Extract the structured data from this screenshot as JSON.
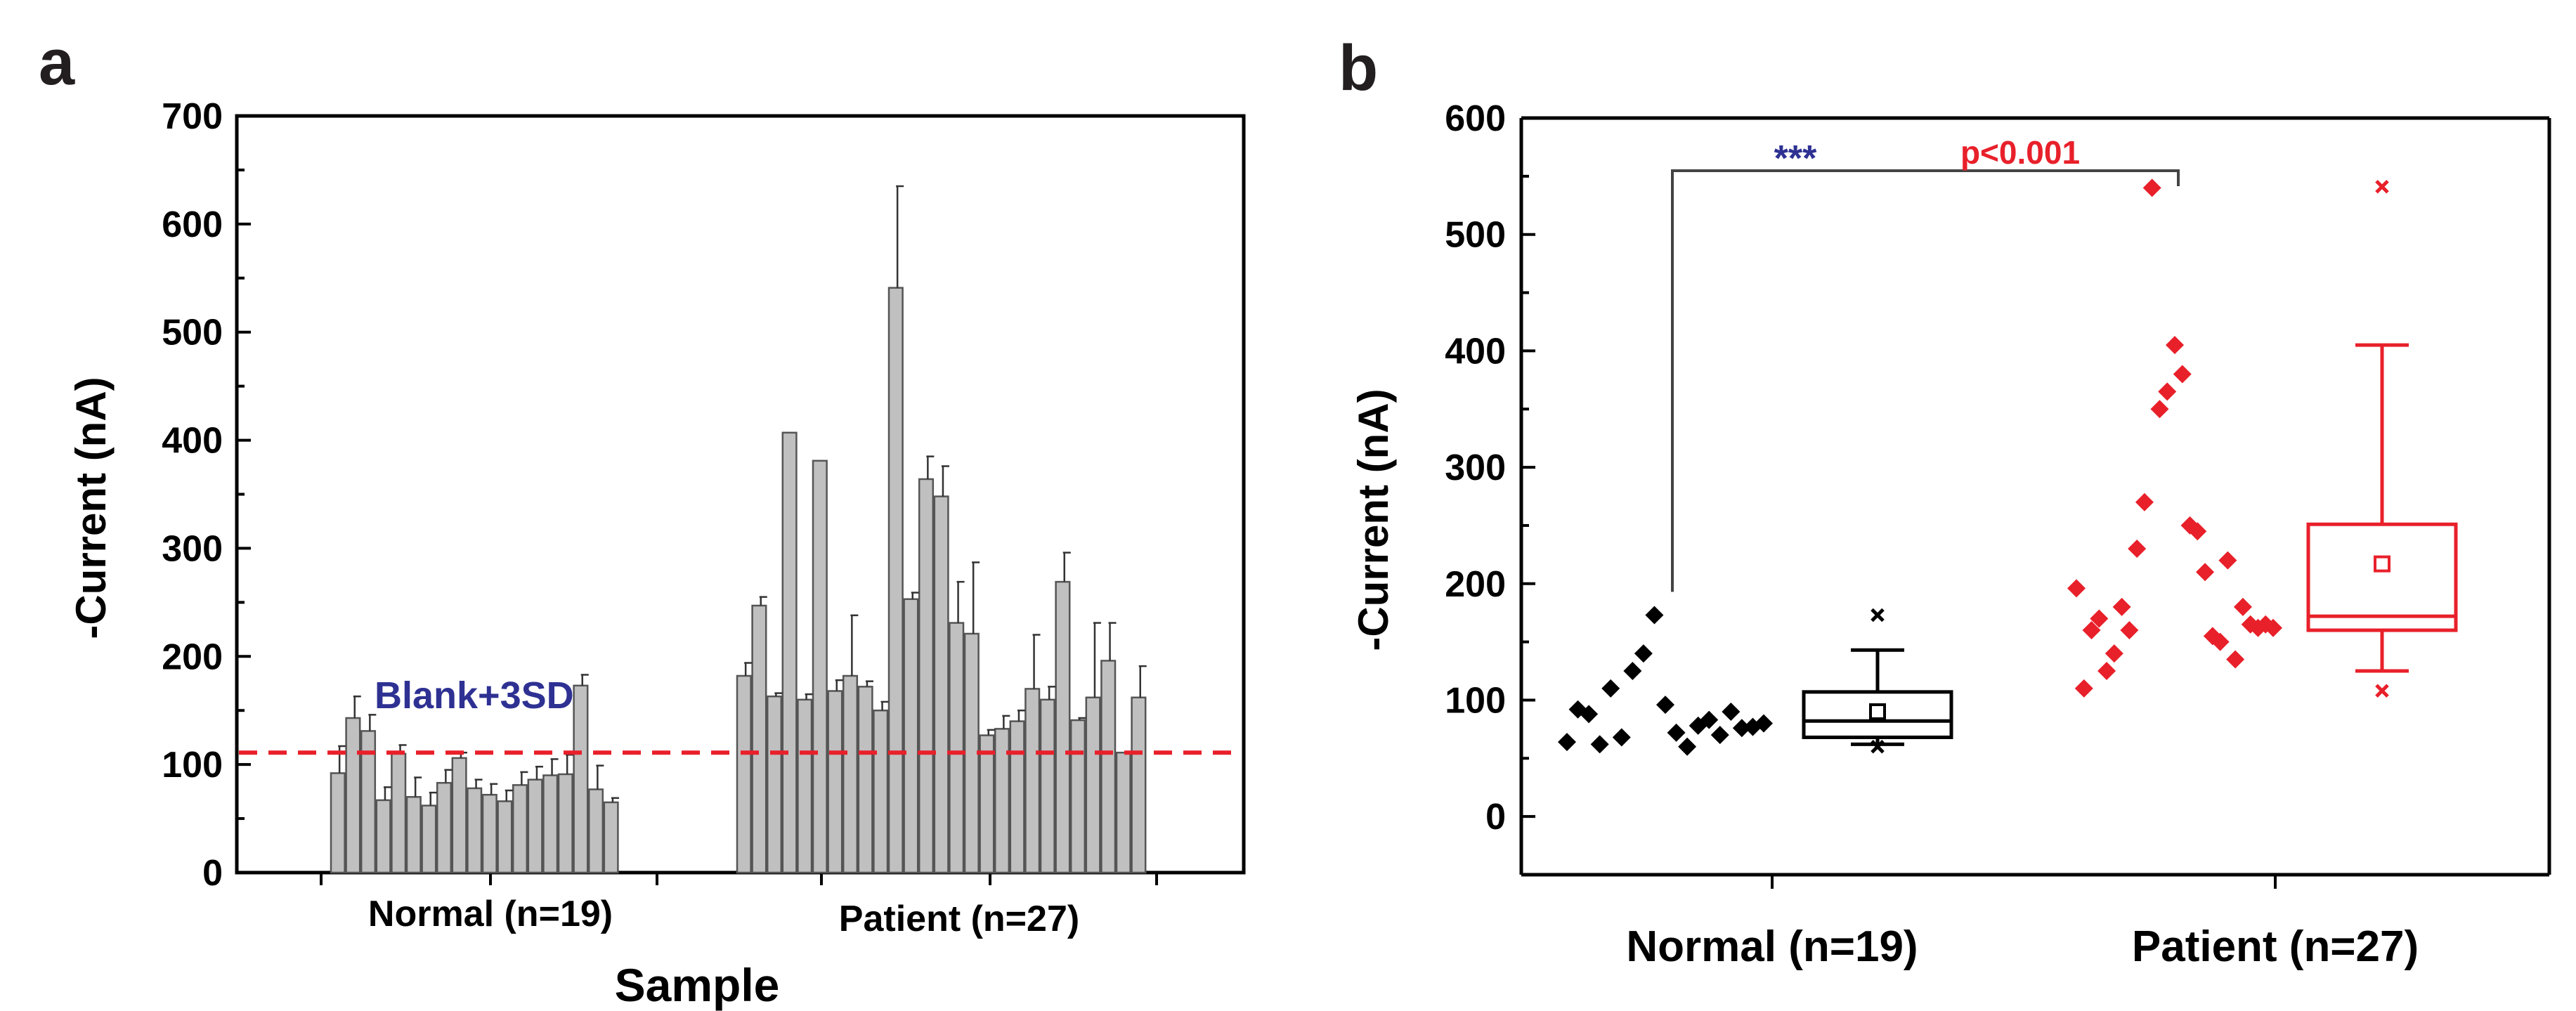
{
  "chart_data": [
    {
      "panel_label": "a",
      "type": "bar",
      "xlabel": "Sample",
      "ylabel": "-Current (nA)",
      "ylim": [
        0,
        700
      ],
      "yticks": [
        0,
        100,
        200,
        300,
        400,
        500,
        600,
        700
      ],
      "groups": [
        {
          "name": "Normal (n=19)",
          "values": [
            92,
            143,
            131,
            67,
            110,
            70,
            62,
            83,
            106,
            78,
            72,
            66,
            81,
            86,
            90,
            91,
            173,
            77,
            65
          ],
          "errors": [
            25,
            20,
            15,
            12,
            8,
            18,
            12,
            12,
            5,
            8,
            10,
            10,
            12,
            12,
            15,
            18,
            10,
            22,
            4
          ]
        },
        {
          "name": "Patient (n=27)",
          "values": [
            182,
            247,
            163,
            407,
            160,
            381,
            168,
            182,
            172,
            150,
            541,
            253,
            364,
            348,
            231,
            221,
            127,
            133,
            140,
            170,
            160,
            269,
            141,
            162,
            196,
            111,
            162
          ],
          "errors": [
            12,
            8,
            3,
            0,
            5,
            0,
            10,
            56,
            5,
            8,
            94,
            6,
            21,
            28,
            38,
            66,
            5,
            12,
            10,
            50,
            12,
            27,
            2,
            69,
            35,
            0,
            29
          ]
        }
      ],
      "reference_line": {
        "value": 111,
        "label": "Blank+3SD",
        "color": "#e8202a"
      },
      "colors": {
        "bar": "#c0c0c0",
        "label": "#2e3192"
      }
    },
    {
      "panel_label": "b",
      "type": "scatter",
      "ylabel": "-Current (nA)",
      "ylim": [
        -50,
        600
      ],
      "yticks": [
        0,
        100,
        200,
        300,
        400,
        500,
        600
      ],
      "categories": [
        "Normal (n=19)",
        "Patient (n=27)"
      ],
      "series": [
        {
          "name": "Normal (n=19)",
          "color": "#000000",
          "points": [
            64,
            92,
            88,
            62,
            110,
            68,
            125,
            140,
            173,
            96,
            72,
            60,
            78,
            83,
            70,
            90,
            76,
            77,
            80
          ],
          "box": {
            "q1": 68,
            "median": 82,
            "q3": 107,
            "whisker_low": 62,
            "whisker_high": 143,
            "mean": 90,
            "outliers": [
              173,
              60
            ]
          }
        },
        {
          "name": "Patient (n=27)",
          "color": "#e8202a",
          "points": [
            196,
            110,
            160,
            170,
            125,
            140,
            180,
            160,
            230,
            270,
            540,
            350,
            365,
            405,
            380,
            250,
            245,
            210,
            155,
            150,
            220,
            135,
            180,
            165,
            162,
            165,
            162
          ],
          "box": {
            "q1": 160,
            "median": 172,
            "q3": 251,
            "whisker_low": 125,
            "whisker_high": 405,
            "mean": 217,
            "outliers": [
              541,
              108
            ]
          }
        }
      ],
      "significance": {
        "stars": "***",
        "p_text": "p<0.001",
        "colors": {
          "stars": "#2e3192",
          "p": "#e8202a"
        }
      }
    }
  ]
}
